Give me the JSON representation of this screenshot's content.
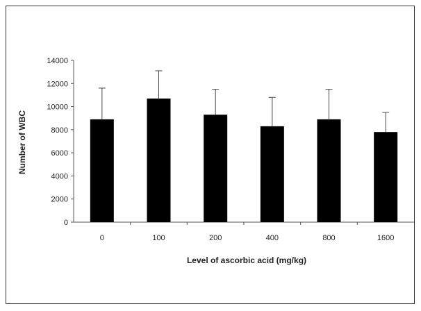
{
  "chart_data": {
    "type": "bar",
    "title": "",
    "xlabel": "Level of ascorbic acid (mg/kg)",
    "ylabel": "Number of WBC",
    "categories": [
      "0",
      "100",
      "200",
      "400",
      "800",
      "1600"
    ],
    "values": [
      8900,
      10700,
      9300,
      8300,
      8900,
      7800
    ],
    "error_upper": [
      2700,
      2400,
      2200,
      2500,
      2600,
      1700
    ],
    "ylim": [
      0,
      14000
    ],
    "yticks": [
      "0",
      "2000",
      "4000",
      "6000",
      "8000",
      "10000",
      "12000",
      "14000"
    ],
    "grid": false,
    "legend": "none",
    "bar_color": "#000000"
  }
}
